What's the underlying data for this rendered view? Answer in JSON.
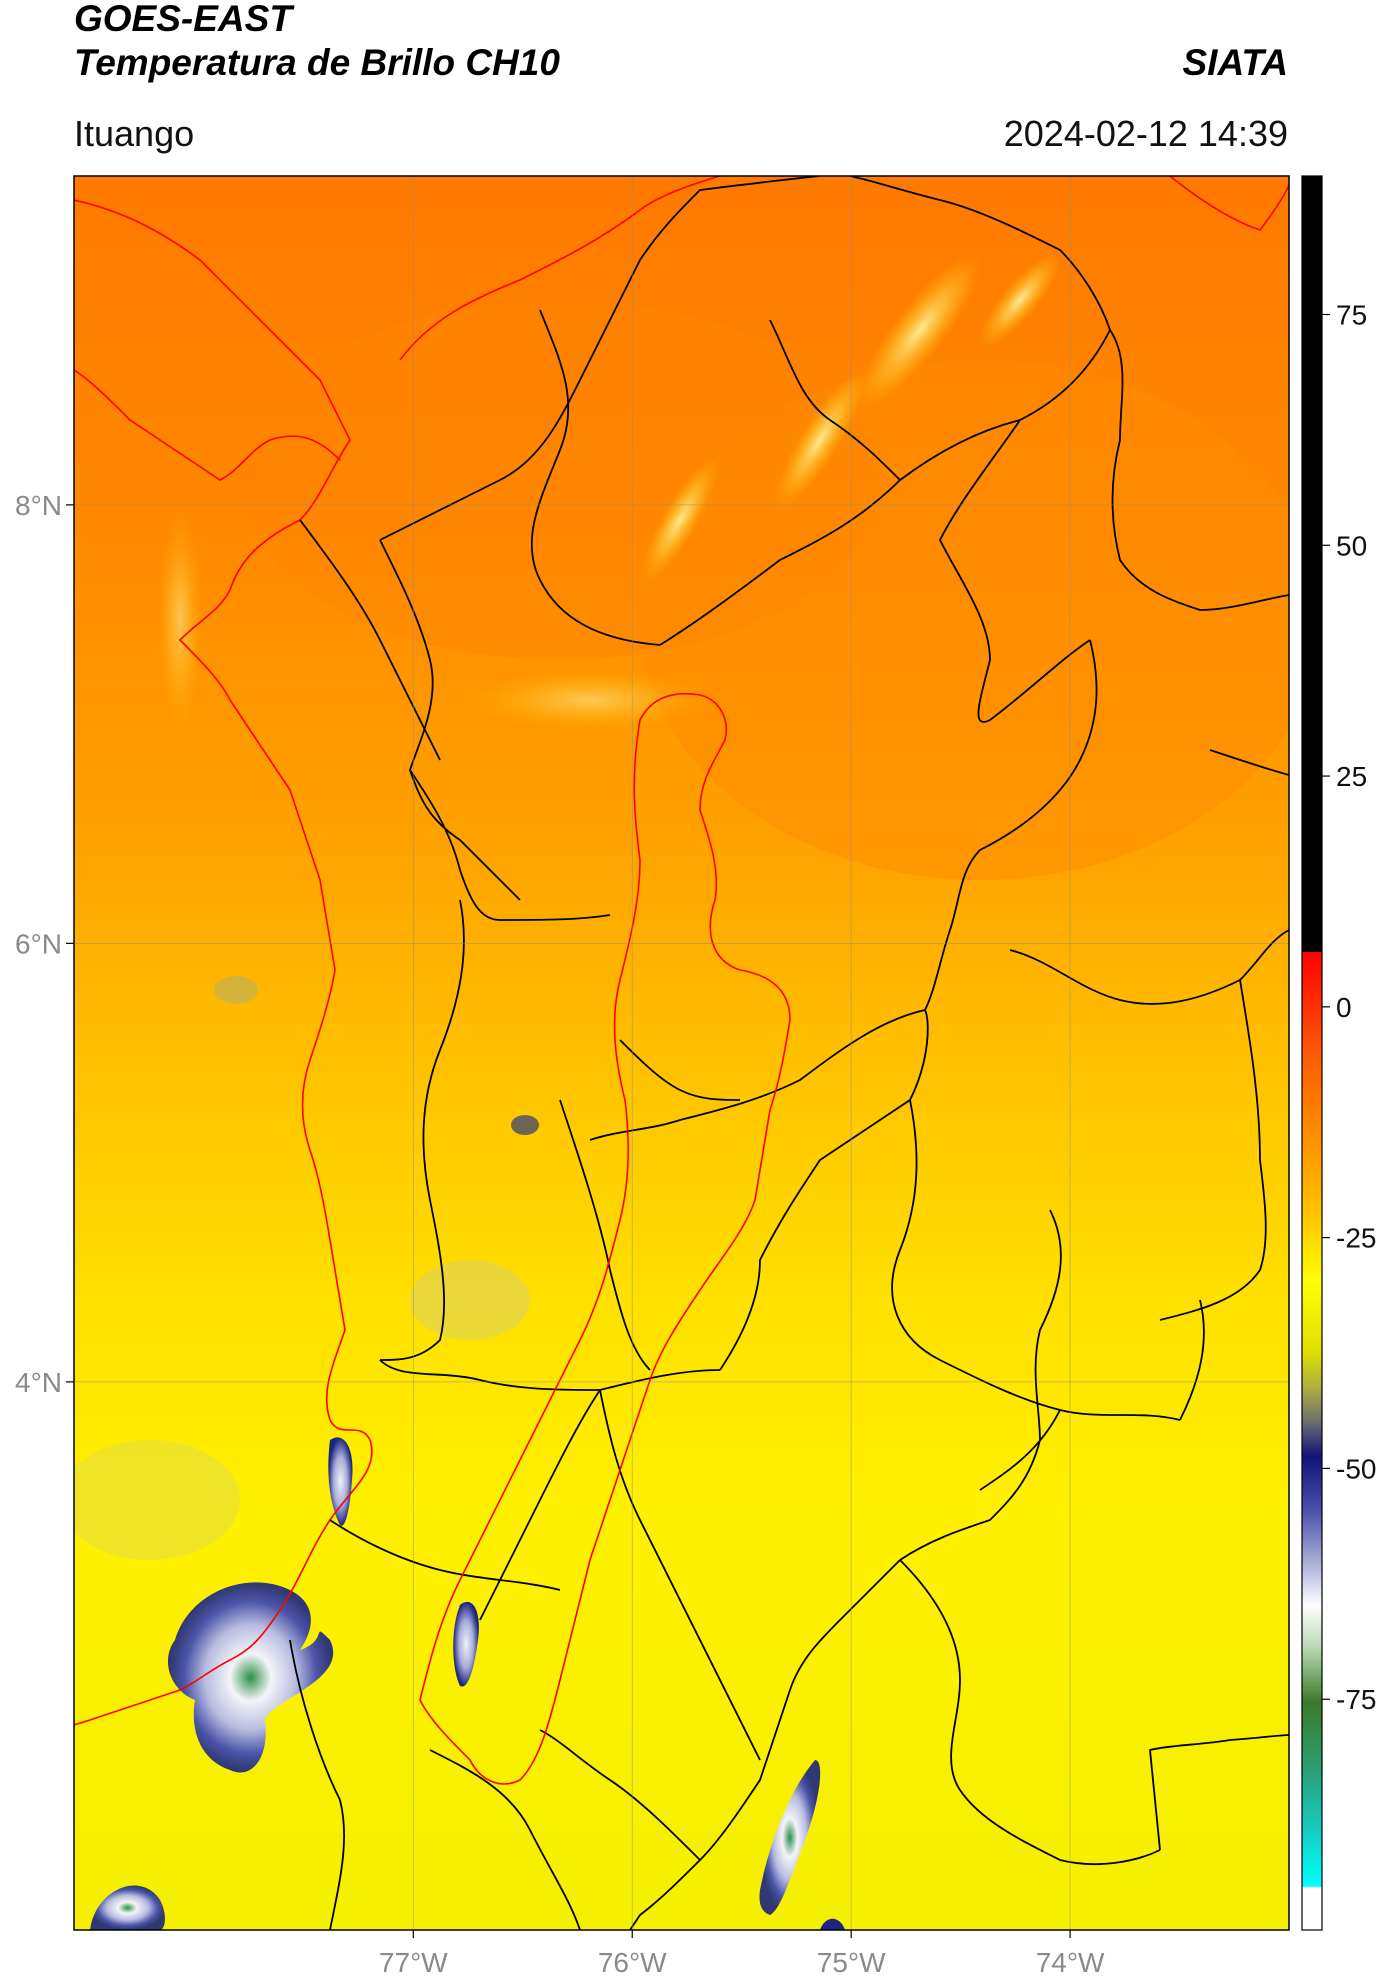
{
  "header": {
    "satellite": "GOES-EAST",
    "product": "Temperatura de Brillo CH10",
    "organization": "SIATA",
    "location": "Ituango",
    "timestamp": "2024-02-12 14:39"
  },
  "map": {
    "extent": {
      "lon_min": -78.55,
      "lon_max": -73.0,
      "lat_min": 1.5,
      "lat_max": 9.5
    },
    "lat_ticks": [
      {
        "value": 8,
        "label": "8°N"
      },
      {
        "value": 6,
        "label": "6°N"
      },
      {
        "value": 4,
        "label": "4°N"
      }
    ],
    "lon_ticks": [
      {
        "value": -77,
        "label": "77°W"
      },
      {
        "value": -76,
        "label": "76°W"
      },
      {
        "value": -75,
        "label": "75°W"
      },
      {
        "value": -74,
        "label": "74°W"
      }
    ],
    "gridlines": true,
    "coastline_color": "#ff0000",
    "boundary_color": "#000000"
  },
  "colorbar": {
    "min": -100,
    "max": 90,
    "ticks": [
      {
        "value": 75,
        "label": "75"
      },
      {
        "value": 50,
        "label": "50"
      },
      {
        "value": 25,
        "label": "25"
      },
      {
        "value": 0,
        "label": "0"
      },
      {
        "value": -25,
        "label": "-25"
      },
      {
        "value": -50,
        "label": "-50"
      },
      {
        "value": -75,
        "label": "-75"
      }
    ]
  }
}
